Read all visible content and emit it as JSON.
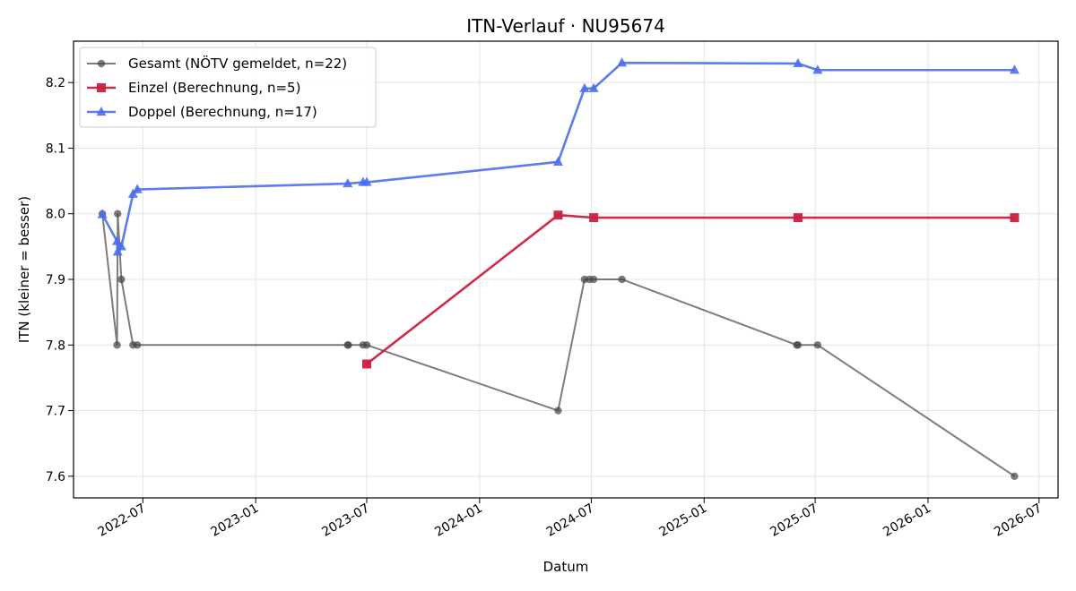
{
  "chart_data": {
    "type": "line",
    "title": "ITN-Verlauf · NU95674",
    "xlabel": "Datum",
    "ylabel": "ITN  (kleiner = besser)",
    "x_type": "date",
    "xlim": [
      "2022-03-10",
      "2026-08-01"
    ],
    "ylim": [
      7.567,
      8.263
    ],
    "x_ticks": [
      "2022-07-01",
      "2023-01-01",
      "2023-07-01",
      "2024-01-01",
      "2024-07-01",
      "2025-01-01",
      "2025-07-01",
      "2026-01-01",
      "2026-07-01"
    ],
    "x_tick_labels": [
      "2022-07",
      "2023-01",
      "2023-07",
      "2024-01",
      "2024-07",
      "2025-01",
      "2025-07",
      "2026-01",
      "2026-07"
    ],
    "y_ticks": [
      7.6,
      7.7,
      7.8,
      7.9,
      8.0,
      8.1,
      8.2
    ],
    "y_tick_labels": [
      "7.6",
      "7.7",
      "7.8",
      "7.9",
      "8.0",
      "8.1",
      "8.2"
    ],
    "grid": true,
    "legend_position": "top-left",
    "series": [
      {
        "name": "Gesamt (NÖTV gemeldet, n=22)",
        "color": "#444444",
        "marker": "circle",
        "points": [
          {
            "x": "2022-04-26",
            "y": 8.0
          },
          {
            "x": "2022-05-20",
            "y": 7.8
          },
          {
            "x": "2022-05-21",
            "y": 8.0
          },
          {
            "x": "2022-05-27",
            "y": 7.9
          },
          {
            "x": "2022-06-15",
            "y": 7.8
          },
          {
            "x": "2022-06-22",
            "y": 7.8
          },
          {
            "x": "2023-05-31",
            "y": 7.8
          },
          {
            "x": "2023-06-01",
            "y": 7.8
          },
          {
            "x": "2023-06-25",
            "y": 7.8
          },
          {
            "x": "2023-07-01",
            "y": 7.8
          },
          {
            "x": "2024-05-08",
            "y": 7.7
          },
          {
            "x": "2024-06-20",
            "y": 7.9
          },
          {
            "x": "2024-06-28",
            "y": 7.9
          },
          {
            "x": "2024-07-05",
            "y": 7.9
          },
          {
            "x": "2024-08-20",
            "y": 7.9
          },
          {
            "x": "2025-06-01",
            "y": 7.8
          },
          {
            "x": "2025-06-03",
            "y": 7.8
          },
          {
            "x": "2025-07-05",
            "y": 7.8
          },
          {
            "x": "2026-05-22",
            "y": 7.6
          }
        ]
      },
      {
        "name": "Einzel (Berechnung, n=5)",
        "color": "#cc1f3f",
        "marker": "square",
        "points": [
          {
            "x": "2023-07-01",
            "y": 7.771
          },
          {
            "x": "2024-05-08",
            "y": 7.998
          },
          {
            "x": "2024-07-05",
            "y": 7.994
          },
          {
            "x": "2025-06-03",
            "y": 7.994
          },
          {
            "x": "2026-05-22",
            "y": 7.994
          }
        ]
      },
      {
        "name": "Doppel (Berechnung, n=17)",
        "color": "#4a6ef0",
        "marker": "triangle",
        "points": [
          {
            "x": "2022-04-26",
            "y": 7.999
          },
          {
            "x": "2022-05-20",
            "y": 7.958
          },
          {
            "x": "2022-05-21",
            "y": 7.942
          },
          {
            "x": "2022-05-27",
            "y": 7.95
          },
          {
            "x": "2022-06-15",
            "y": 8.03
          },
          {
            "x": "2022-06-22",
            "y": 8.037
          },
          {
            "x": "2023-05-31",
            "y": 8.046
          },
          {
            "x": "2023-06-25",
            "y": 8.048
          },
          {
            "x": "2023-07-01",
            "y": 8.048
          },
          {
            "x": "2024-05-08",
            "y": 8.079
          },
          {
            "x": "2024-06-20",
            "y": 8.191
          },
          {
            "x": "2024-07-05",
            "y": 8.191
          },
          {
            "x": "2024-08-20",
            "y": 8.23
          },
          {
            "x": "2025-06-03",
            "y": 8.229
          },
          {
            "x": "2025-07-05",
            "y": 8.219
          },
          {
            "x": "2026-05-22",
            "y": 8.219
          }
        ]
      }
    ]
  }
}
